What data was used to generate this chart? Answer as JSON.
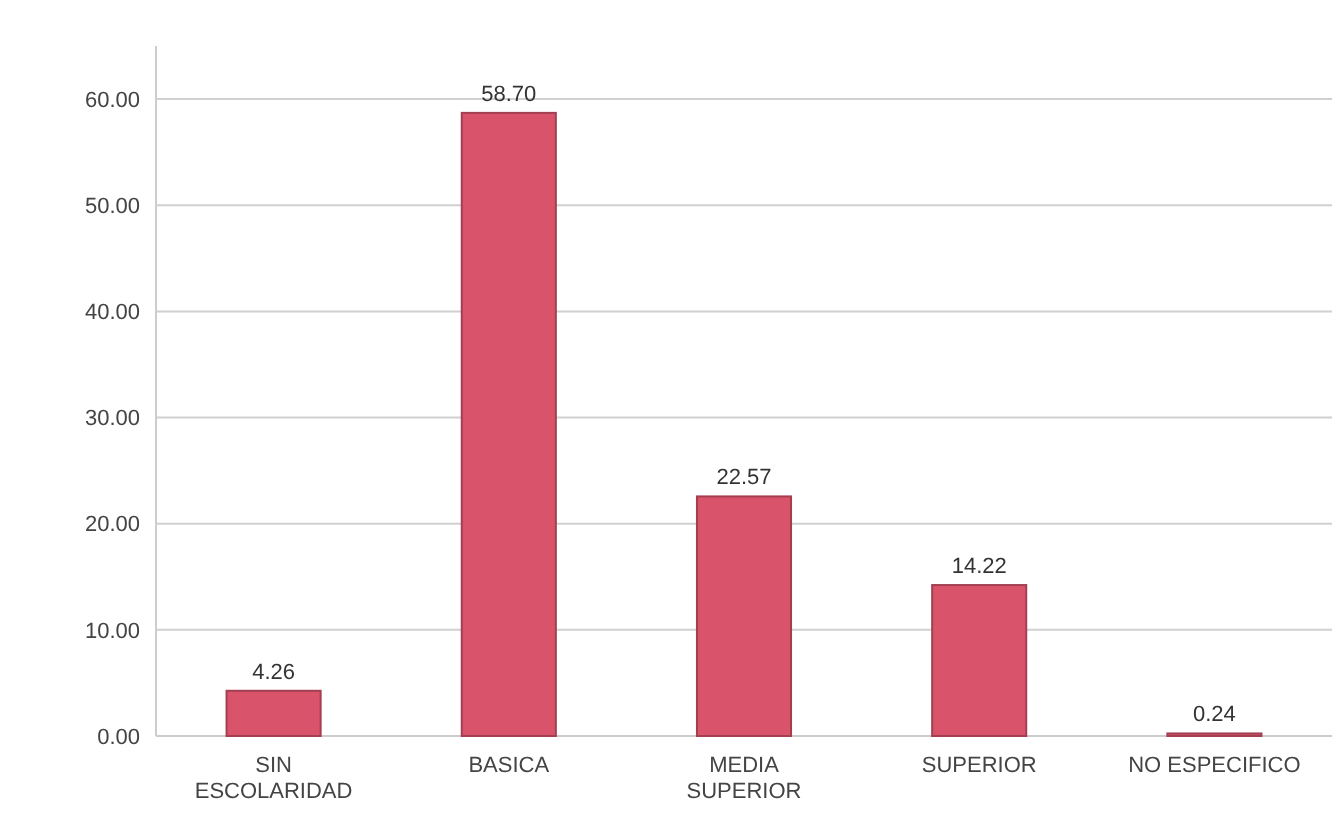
{
  "chart_data": {
    "type": "bar",
    "categories": [
      "SIN ESCOLARIDAD",
      "BASICA",
      "MEDIA SUPERIOR",
      "SUPERIOR",
      "NO ESPECIFICO"
    ],
    "values": [
      4.26,
      58.7,
      22.57,
      14.22,
      0.24
    ],
    "value_labels": [
      "4.26",
      "58.70",
      "22.57",
      "14.22",
      "0.24"
    ],
    "color": "#d9546a",
    "ylim": [
      0,
      65
    ],
    "yticks": [
      {
        "value": 0,
        "label": "0.00"
      },
      {
        "value": 10,
        "label": "10.00"
      },
      {
        "value": 20,
        "label": "20.00"
      },
      {
        "value": 30,
        "label": "30.00"
      },
      {
        "value": 40,
        "label": "40.00"
      },
      {
        "value": 50,
        "label": "50.00"
      },
      {
        "value": 60,
        "label": "60.00"
      }
    ],
    "grid": "y"
  }
}
